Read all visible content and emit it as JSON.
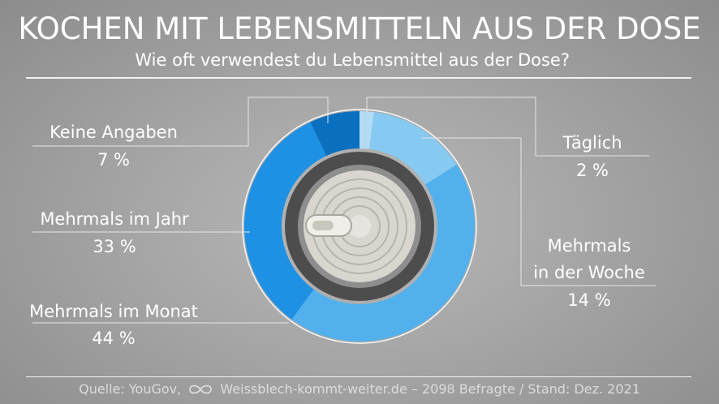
{
  "header": {
    "title": "KOCHEN MIT LEBENSMITTELN AUS DER DOSE",
    "subtitle": "Wie oft verwendest du Lebensmittel aus der Dose?"
  },
  "footer": {
    "source_prefix": "Quelle: YouGov,",
    "source_rest": "Weissblech-kommt-weiter.de – 2098 Befragte / Stand: Dez. 2021",
    "logo_icon": "infinity-icon"
  },
  "colors": {
    "background": "#a5a5a5",
    "ring": "#ffffff",
    "can_gray": "#5a5a5a"
  },
  "chart_data": {
    "type": "pie",
    "variant": "donut",
    "title": "KOCHEN MIT LEBENSMITTELN AUS DER DOSE",
    "subtitle": "Wie oft verwendest du Lebensmittel aus der Dose?",
    "unit": "%",
    "slices": [
      {
        "name": "Täglich",
        "label_lines": [
          "Täglich"
        ],
        "value": 2,
        "value_label": "2 %",
        "color": "#b3dbf5"
      },
      {
        "name": "Mehrmals in der Woche",
        "label_lines": [
          "Mehrmals",
          "in der Woche"
        ],
        "value": 14,
        "value_label": "14 %",
        "color": "#86c9f1"
      },
      {
        "name": "Mehrmals im Monat",
        "label_lines": [
          "Mehrmals im Monat"
        ],
        "value": 44,
        "value_label": "44 %",
        "color": "#52b1ec"
      },
      {
        "name": "Mehrmals im Jahr",
        "label_lines": [
          "Mehrmals im Jahr"
        ],
        "value": 33,
        "value_label": "33 %",
        "color": "#1f91e4"
      },
      {
        "name": "Keine Angaben",
        "label_lines": [
          "Keine Angaben"
        ],
        "value": 7,
        "value_label": "7 %",
        "color": "#0a6fbf"
      }
    ],
    "center_image": "tin-can-lid"
  }
}
